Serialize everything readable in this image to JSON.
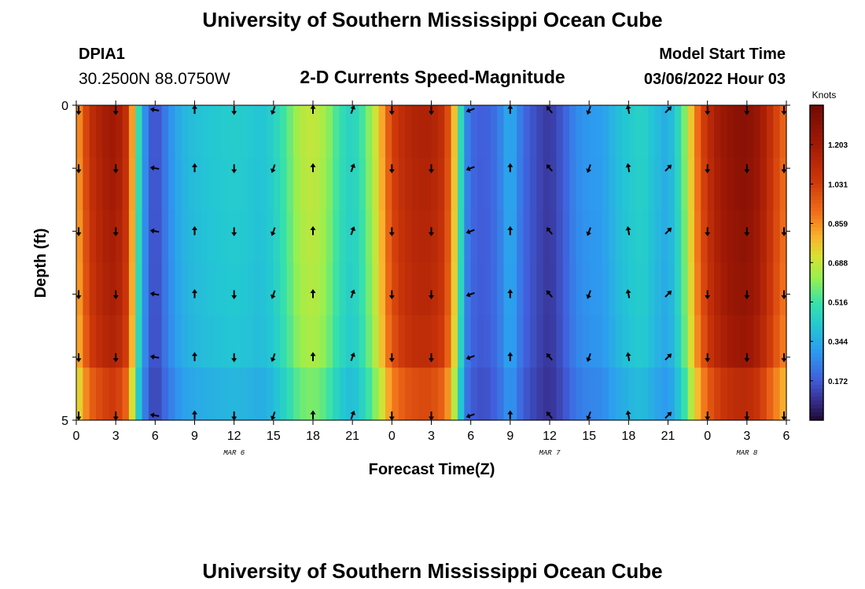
{
  "header": {
    "title": "University of Southern Mississippi Ocean Cube",
    "station": "DPIA1",
    "coords": "30.2500N  88.0750W",
    "plot_title": "2-D Currents Speed-Magnitude",
    "model_label": "Model Start Time",
    "model_time": "03/06/2022 Hour 03",
    "footer_title": "University of Southern Mississippi Ocean Cube"
  },
  "chart_data": {
    "type": "heatmap",
    "xlabel": "Forecast Time(Z)",
    "ylabel": "Depth (ft)",
    "x_tick_labels": [
      "0",
      "3",
      "6",
      "9",
      "12",
      "15",
      "18",
      "21",
      "0",
      "3",
      "6",
      "9",
      "12",
      "15",
      "18",
      "21",
      "0",
      "3",
      "6"
    ],
    "x_tick_hours": [
      0,
      3,
      6,
      9,
      12,
      15,
      18,
      21,
      24,
      27,
      30,
      33,
      36,
      39,
      42,
      45,
      48,
      51,
      54
    ],
    "date_labels": [
      {
        "label": "MAR 6",
        "hour": 12
      },
      {
        "label": "MAR 7",
        "hour": 36
      },
      {
        "label": "MAR 8",
        "hour": 51
      }
    ],
    "xlim": [
      0,
      54
    ],
    "ylim": [
      0,
      5
    ],
    "y_tick_labels": [
      "0",
      "5"
    ],
    "y_tick_values": [
      0,
      5
    ],
    "colorbar": {
      "unit": "Knots",
      "min": 0,
      "max": 1.375,
      "tick_labels": [
        "1.203",
        "1.031",
        "0.859",
        "0.688",
        "0.516",
        "0.344",
        "0.172"
      ],
      "tick_values": [
        1.203,
        1.031,
        0.859,
        0.688,
        0.516,
        0.344,
        0.172
      ]
    },
    "speed_keyframes": {
      "hours": [
        0,
        1,
        2,
        3,
        4,
        4.5,
        5,
        5.5,
        6,
        7,
        8,
        9,
        10,
        11,
        12,
        13,
        14,
        15,
        16,
        17,
        18,
        19,
        20,
        21,
        22,
        23,
        24,
        25,
        26,
        27,
        28,
        28.5,
        29,
        29.5,
        30,
        31,
        32,
        33,
        34,
        35,
        36,
        37,
        38,
        39,
        40,
        41,
        42,
        43,
        44,
        45,
        46,
        47,
        48,
        49,
        50,
        51,
        52,
        53,
        54
      ],
      "speeds": [
        0.8,
        1.08,
        1.18,
        1.22,
        1.05,
        0.62,
        0.35,
        0.2,
        0.13,
        0.27,
        0.36,
        0.39,
        0.41,
        0.42,
        0.43,
        0.42,
        0.4,
        0.44,
        0.54,
        0.66,
        0.69,
        0.63,
        0.5,
        0.44,
        0.55,
        0.75,
        1.02,
        1.12,
        1.16,
        1.16,
        1.08,
        0.9,
        0.65,
        0.3,
        0.2,
        0.17,
        0.22,
        0.36,
        0.2,
        0.14,
        0.1,
        0.17,
        0.27,
        0.3,
        0.31,
        0.38,
        0.42,
        0.45,
        0.39,
        0.34,
        0.5,
        0.85,
        1.1,
        1.22,
        1.28,
        1.3,
        1.22,
        1.05,
        0.9
      ]
    },
    "depth_factors": [
      1.0,
      0.99,
      0.98,
      0.97,
      0.95,
      0.86
    ],
    "vectors": {
      "hours": [
        0,
        3,
        6,
        9,
        12,
        15,
        18,
        21,
        24,
        27,
        30,
        33,
        36,
        39,
        42,
        45,
        48,
        51,
        54
      ],
      "directions_deg": [
        180,
        180,
        280,
        0,
        180,
        200,
        0,
        20,
        180,
        180,
        250,
        0,
        320,
        200,
        350,
        45,
        180,
        180,
        180
      ],
      "depths": [
        0,
        1,
        2,
        3,
        4,
        5
      ]
    }
  }
}
